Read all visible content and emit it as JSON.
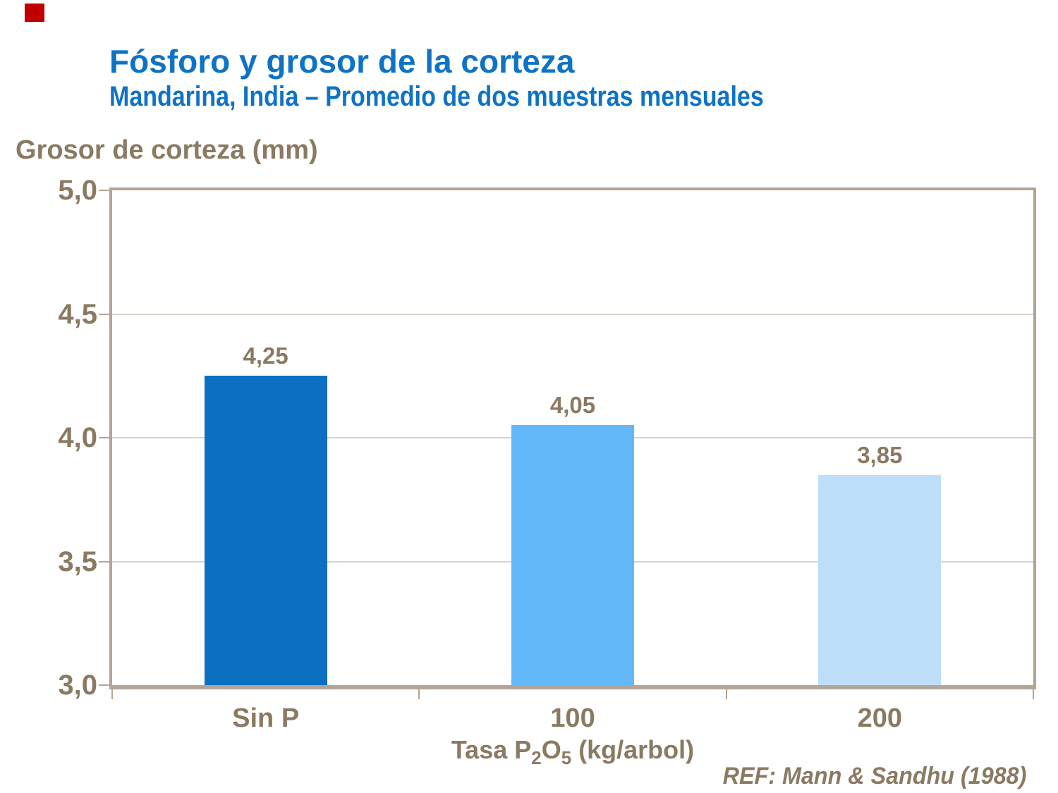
{
  "page": {
    "title": "Fósforo y grosor de la corteza",
    "subtitle": "Mandarina, India – Promedio de dos muestras mensuales",
    "reference": "REF: Mann & Sandhu (1988)"
  },
  "colors": {
    "title_blue": "#0F73C5",
    "text_brown": "#8A7A62",
    "axis_line": "#B3A494",
    "gridline": "#D9D2C8",
    "corner_square_red": "#C00000",
    "bars": [
      "#0B70C2",
      "#62B8F8",
      "#BDDEF8"
    ]
  },
  "chart_data": {
    "type": "bar",
    "title": "Fósforo y grosor de la corteza",
    "subtitle": "Mandarina, India – Promedio de dos muestras mensuales",
    "categories": [
      "Sin P",
      "100",
      "200"
    ],
    "values": [
      4.25,
      4.05,
      3.85
    ],
    "value_labels": [
      "4,25",
      "4,05",
      "3,85"
    ],
    "ylabel": "Grosor de corteza (mm)",
    "xlabel": "Tasa P2O5 (kg/arbol)",
    "xlabel_parts": [
      {
        "t": "Tasa P",
        "sub": false
      },
      {
        "t": "2",
        "sub": true
      },
      {
        "t": "O",
        "sub": false
      },
      {
        "t": "5",
        "sub": true
      },
      {
        "t": " (kg/arbol)",
        "sub": false
      }
    ],
    "ylim": [
      3.0,
      5.0
    ],
    "yticks": [
      {
        "value": 5.0,
        "label": "5,0"
      },
      {
        "value": 4.5,
        "label": "4,5"
      },
      {
        "value": 4.0,
        "label": "4,0"
      },
      {
        "value": 3.5,
        "label": "3,5"
      },
      {
        "value": 3.0,
        "label": "3,0"
      }
    ],
    "grid": true,
    "legend": "none",
    "annotation": "REF: Mann & Sandhu (1988)"
  }
}
